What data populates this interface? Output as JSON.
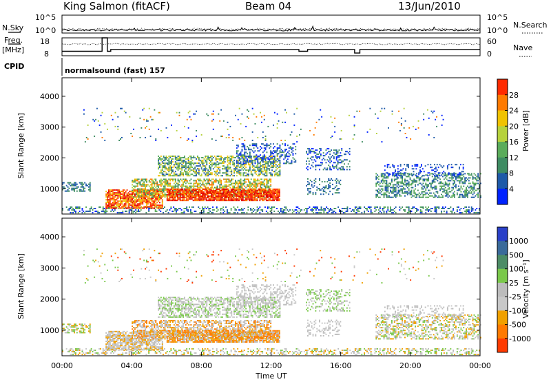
{
  "header": {
    "radar": "King Salmon (fitACF)",
    "beam": "Beam 04",
    "date": "13/Jun/2010"
  },
  "top_panel": {
    "left_label": "N.Sky",
    "right_label": "N.Search",
    "left_ticks": [
      "10^5",
      "10^0"
    ],
    "right_ticks": [
      "10^5",
      "10^0"
    ]
  },
  "freq_panel": {
    "left_label": "Freq.",
    "left_unit": "[MHz]",
    "right_label": "Nave",
    "left_ticks": [
      "18",
      "8"
    ],
    "right_ticks": [
      "60",
      "0"
    ],
    "cpid_label": "CPID",
    "cpid_value": "normalsound (fast) 157"
  },
  "colors": {
    "power_scale": [
      "#0022ff",
      "#1e5aa8",
      "#3e8c62",
      "#5aac5a",
      "#b6d23c",
      "#f0c200",
      "#ff7a00",
      "#ff2a00",
      "#e00000"
    ],
    "velocity_scale": [
      "#2a40c8",
      "#3a6a9a",
      "#4c8c66",
      "#7ac84a",
      "#bcbcbc",
      "#c8c8c8",
      "#f0a000",
      "#ff7a00",
      "#ff3a00",
      "#e00000"
    ]
  },
  "chart_data": [
    {
      "type": "heatmap",
      "title": "Power",
      "ylabel": "Slant Range [km]",
      "ylim": [
        180,
        4600
      ],
      "yticks": [
        "1000",
        "2000",
        "3000",
        "4000"
      ],
      "colorbar_label": "Power [dB]",
      "colorbar_ticks": [
        "4",
        "8",
        "12",
        "16",
        "20",
        "24",
        "28"
      ],
      "colorbar_range": [
        0,
        32
      ]
    },
    {
      "type": "heatmap",
      "title": "Velocity",
      "ylabel": "Slant Range [km]",
      "ylim": [
        180,
        4600
      ],
      "yticks": [
        "1000",
        "2000",
        "3000",
        "4000"
      ],
      "colorbar_label": "Velocity [m s⁻¹]",
      "colorbar_ticks": [
        "1000",
        "500",
        "100",
        "25",
        "-25",
        "-100",
        "-500",
        "-1000"
      ],
      "xlabel": "Time UT",
      "xticks": [
        "00:00",
        "04:00",
        "08:00",
        "12:00",
        "16:00",
        "20:00",
        "00:00"
      ],
      "xlim": [
        0,
        24
      ]
    }
  ]
}
